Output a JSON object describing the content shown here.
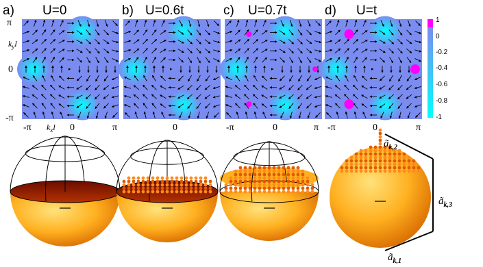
{
  "panels": [
    {
      "letter": "a)",
      "label": "U=0",
      "pink_points": []
    },
    {
      "letter": "b)",
      "label": "U=0.6t",
      "pink_points": []
    },
    {
      "letter": "c)",
      "label": "U=0.7t",
      "pink_points": [
        [
          -1.57,
          2.2
        ],
        [
          2.7,
          0
        ],
        [
          -1.57,
          -2.2
        ]
      ]
    },
    {
      "letter": "d)",
      "label": "U=t",
      "pink_points": [
        [
          -1.57,
          2.2
        ],
        [
          2.7,
          0
        ],
        [
          -1.57,
          -2.2
        ]
      ]
    }
  ],
  "axes": {
    "y_ticks": [
      "π",
      "0",
      "-π"
    ],
    "x_ticks": [
      "-π",
      "0",
      "π"
    ],
    "y_label": "k",
    "y_label_sub": "y",
    "y_label_l": "l",
    "x_label": "k",
    "x_label_sub": "x",
    "x_label_l": "l"
  },
  "colorbar": {
    "ticks": [
      "1",
      "0",
      "-0.2",
      "-0.4",
      "-0.6",
      "-0.8",
      "-1"
    ],
    "colors": [
      "#ff00ff",
      "#7b8cf0",
      "#00ffff"
    ]
  },
  "spheres": [
    {
      "fill_level": 0.0,
      "has_dots": false
    },
    {
      "fill_level": 0.05,
      "has_dots": true
    },
    {
      "fill_level": 0.4,
      "has_dots": true
    },
    {
      "fill_level": 0.85,
      "has_dots": true
    }
  ],
  "sphere_axes": {
    "a2": "ã",
    "a2_sub": "k,2",
    "a3": "ã",
    "a3_sub": "k,3",
    "a1": "ã",
    "a1_sub": "k,1"
  }
}
